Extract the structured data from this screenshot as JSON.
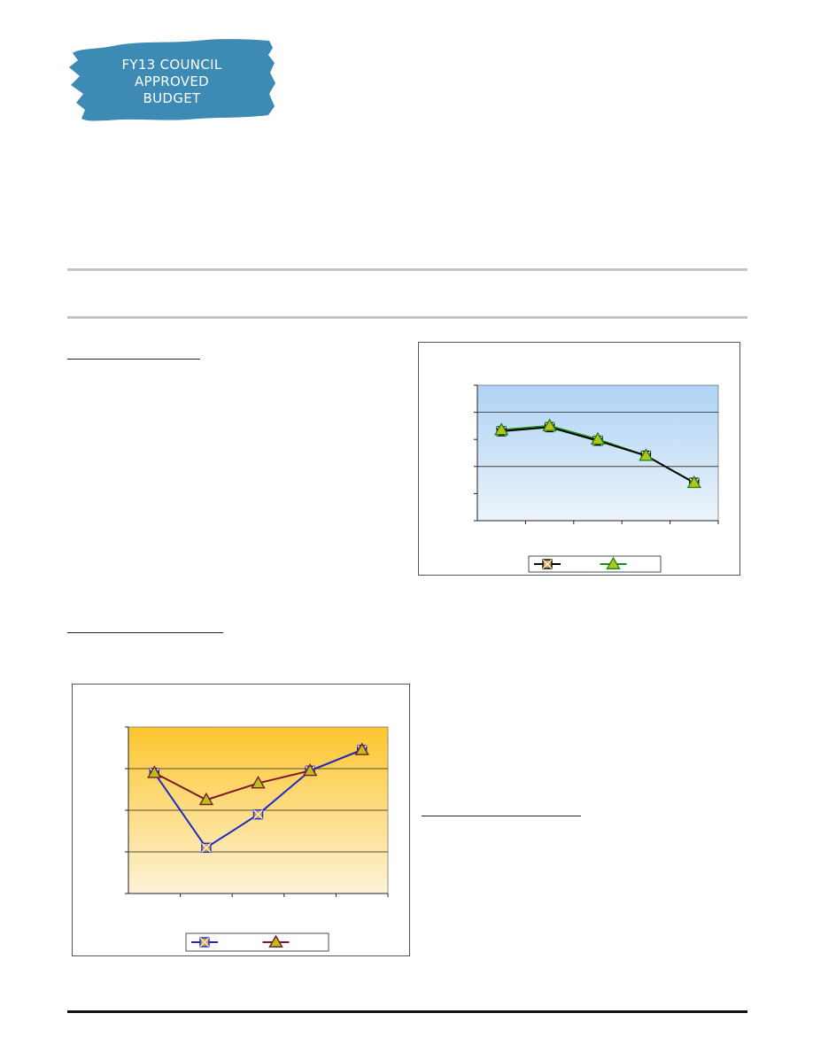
{
  "logo": {
    "lines": [
      "FY13 COUNCIL",
      "APPROVED",
      "BUDGET"
    ],
    "color": "#3d8ab4"
  },
  "chart_data": [
    {
      "type": "line",
      "title": "",
      "xlabel": "",
      "ylabel": "",
      "categories": [
        "",
        "",
        "",
        "",
        ""
      ],
      "series": [
        {
          "color": "#000000",
          "marker": "x-square",
          "values": [
            3.3,
            3.45,
            2.95,
            2.4,
            1.4
          ]
        },
        {
          "color": "#1a8c1a",
          "marker": "triangle",
          "values": [
            3.35,
            3.5,
            3.0,
            2.4,
            1.4
          ]
        }
      ],
      "ylim": [
        0,
        5
      ],
      "grid": true,
      "legend": "bottom",
      "background": [
        "#aed3f5",
        "#edf4fb"
      ]
    },
    {
      "type": "line",
      "title": "",
      "xlabel": "",
      "ylabel": "",
      "categories": [
        "",
        "",
        "",
        "",
        ""
      ],
      "series": [
        {
          "color": "#1c2cc4",
          "marker": "x-square",
          "values": [
            2.9,
            1.1,
            1.9,
            2.95,
            3.45
          ]
        },
        {
          "color": "#7a1a2a",
          "marker": "triangle",
          "values": [
            2.9,
            2.25,
            2.65,
            2.95,
            3.45
          ]
        }
      ],
      "ylim": [
        0,
        4
      ],
      "grid": true,
      "legend": "bottom",
      "background": [
        "#fdc62e",
        "#fdf2d8"
      ]
    }
  ]
}
